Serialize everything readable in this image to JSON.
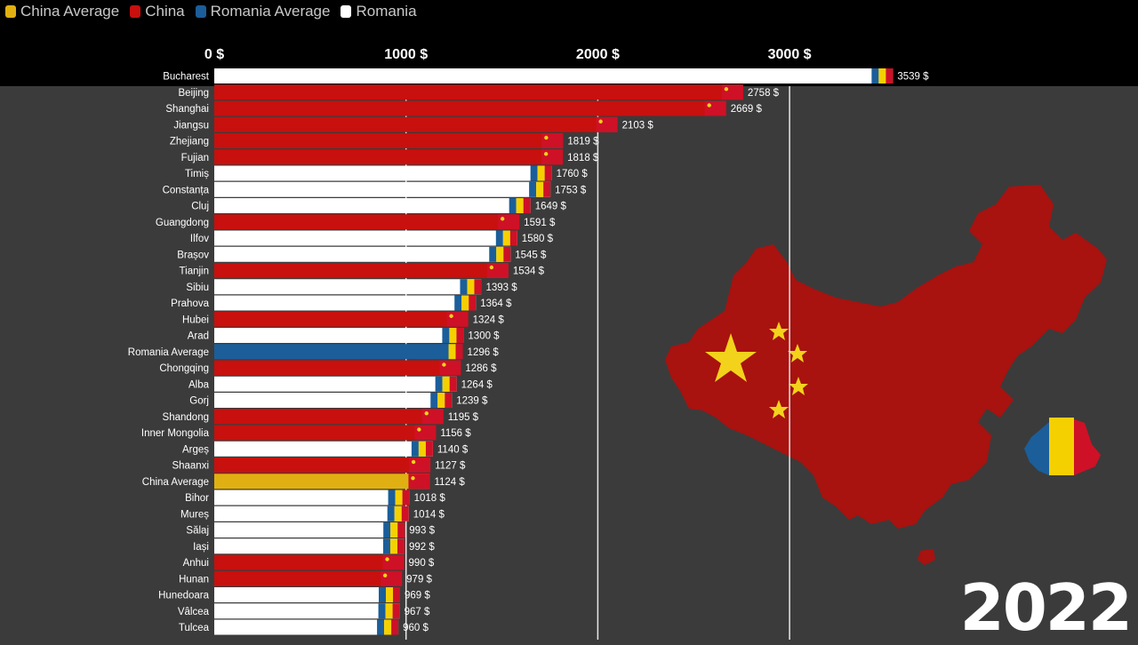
{
  "legend": [
    {
      "label": "China Average",
      "color": "#e0b012"
    },
    {
      "label": "China",
      "color": "#c8100e"
    },
    {
      "label": "Romania Average",
      "color": "#1b5e9a"
    },
    {
      "label": "Romania",
      "color": "#ffffff"
    }
  ],
  "year": "2022",
  "colors": {
    "china": "#c8100e",
    "romania": "#ffffff",
    "romania_average": "#1b5e9a",
    "china_average": "#e0b012",
    "flag_blue": "#1b5e9a",
    "flag_yellow": "#f5d000",
    "flag_red": "#ce1126",
    "star": "#f3d21b"
  },
  "chart_data": {
    "type": "bar",
    "orientation": "horizontal",
    "xlim": [
      0,
      3539
    ],
    "x_ticks": [
      {
        "value": 0,
        "label": "0 $"
      },
      {
        "value": 1000,
        "label": "1000 $"
      },
      {
        "value": 2000,
        "label": "2000 $"
      },
      {
        "value": 3000,
        "label": "3000 $"
      }
    ],
    "value_suffix": " $",
    "categories": [
      "Bucharest",
      "Beijing",
      "Shanghai",
      "Jiangsu",
      "Zhejiang",
      "Fujian",
      "Timiș",
      "Constanța",
      "Cluj",
      "Guangdong",
      "Ilfov",
      "Brașov",
      "Tianjin",
      "Sibiu",
      "Prahova",
      "Hubei",
      "Arad",
      "Romania Average",
      "Chongqing",
      "Alba",
      "Gorj",
      "Shandong",
      "Inner Mongolia",
      "Argeș",
      "Shaanxi",
      "China Average",
      "Bihor",
      "Mureș",
      "Sălaj",
      "Iași",
      "Anhui",
      "Hunan",
      "Hunedoara",
      "Vâlcea",
      "Tulcea"
    ],
    "values": [
      3539,
      2758,
      2669,
      2103,
      1819,
      1818,
      1760,
      1753,
      1649,
      1591,
      1580,
      1545,
      1534,
      1393,
      1364,
      1324,
      1300,
      1296,
      1286,
      1264,
      1239,
      1195,
      1156,
      1140,
      1127,
      1124,
      1018,
      1014,
      993,
      992,
      990,
      979,
      969,
      967,
      960
    ],
    "groups": [
      "romania",
      "china",
      "china",
      "china",
      "china",
      "china",
      "romania",
      "romania",
      "romania",
      "china",
      "romania",
      "romania",
      "china",
      "romania",
      "romania",
      "china",
      "romania",
      "romania_average",
      "china",
      "romania",
      "romania",
      "china",
      "china",
      "romania",
      "china",
      "china_average",
      "romania",
      "romania",
      "romania",
      "romania",
      "china",
      "china",
      "romania",
      "romania",
      "romania"
    ],
    "flags": [
      "ro",
      "cn",
      "cn",
      "cn",
      "cn",
      "cn",
      "ro",
      "ro",
      "ro",
      "cn",
      "ro",
      "ro",
      "cn",
      "ro",
      "ro",
      "cn",
      "ro",
      "ro",
      "cn",
      "ro",
      "ro",
      "cn",
      "cn",
      "ro",
      "cn",
      "cn",
      "ro",
      "ro",
      "ro",
      "ro",
      "cn",
      "cn",
      "ro",
      "ro",
      "ro"
    ]
  }
}
